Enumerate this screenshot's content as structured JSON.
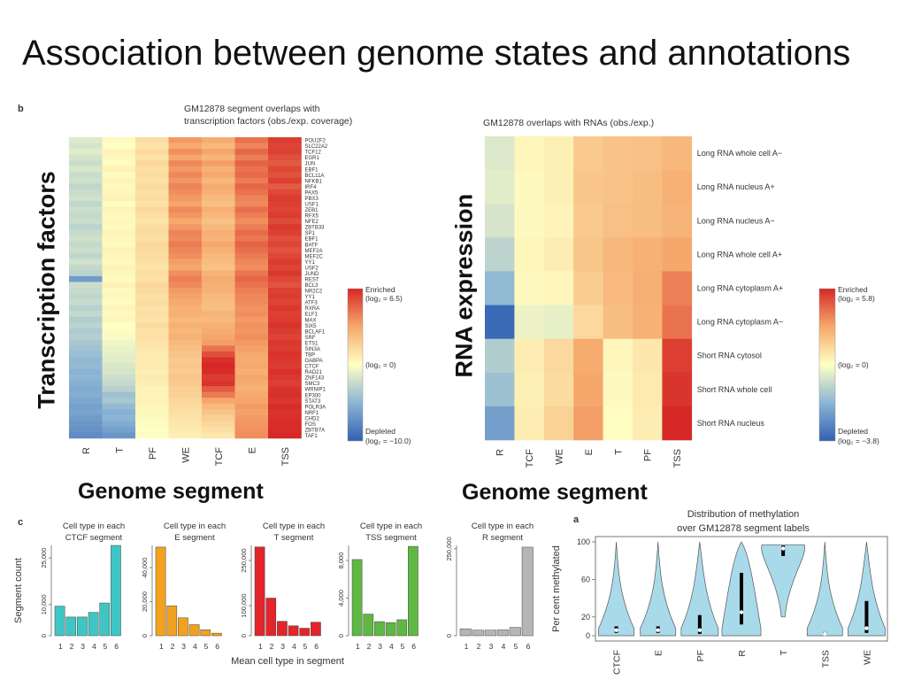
{
  "slide": {
    "title": "Association between genome states and annotations",
    "left_side_label": "Transcription factors",
    "right_side_label": "RNA expression",
    "segment_label_left": "Genome segment",
    "segment_label_right": "Genome segment"
  },
  "chart_data": [
    {
      "type": "heatmap",
      "panel": "b",
      "title": "GM12878 segment overlaps with transcription factors (obs./exp. coverage)",
      "title_lines": [
        "GM12878 segment overlaps with",
        "transcription factors (obs./exp. coverage)"
      ],
      "columns": [
        "R",
        "T",
        "PF",
        "WE",
        "TCF",
        "E",
        "TSS"
      ],
      "rows": [
        "POU2F2",
        "SLC22A2",
        "TCF12",
        "EGR1",
        "JUN",
        "EBF1",
        "BCL11A",
        "NFKB1",
        "IRF4",
        "PAX5",
        "PBX3",
        "USF1",
        "ZEB1",
        "RFX5",
        "NFE2",
        "ZBTB33",
        "SP1",
        "EBF1",
        "BATF",
        "MEF2A",
        "MEF2C",
        "YY1",
        "USF2",
        "JUND",
        "REST",
        "BCL3",
        "NR2C2",
        "YY1",
        "ATF3",
        "RXRA",
        "ELF1",
        "MAX",
        "SIX5",
        "BCLAF1",
        "SRF",
        "ETS1",
        "SIN3A",
        "TBP",
        "GABPA",
        "CTCF",
        "RAD21",
        "ZNF143",
        "SMC3",
        "WRNIP1",
        "EP300",
        "STAT3",
        "POLR3A",
        "NRF1",
        "CHD2",
        "FOS",
        "ZBTB7A",
        "TAF1"
      ],
      "scale": "log2",
      "values": [
        [
          -1.5,
          0.2,
          1.3,
          3.6,
          3.1,
          4.6,
          6.0
        ],
        [
          -1.8,
          0.0,
          1.0,
          3.1,
          2.6,
          4.1,
          5.8
        ],
        [
          -1.3,
          0.4,
          1.4,
          3.9,
          3.3,
          4.9,
          5.9
        ],
        [
          -1.9,
          0.3,
          1.1,
          3.3,
          2.8,
          4.3,
          5.5
        ],
        [
          -2.2,
          0.1,
          1.5,
          4.1,
          3.5,
          5.0,
          5.2
        ],
        [
          -1.7,
          0.5,
          1.2,
          3.6,
          2.9,
          4.6,
          5.7
        ],
        [
          -2.3,
          0.2,
          1.3,
          4.1,
          3.2,
          4.8,
          5.4
        ],
        [
          -2.1,
          0.4,
          1.1,
          3.7,
          2.7,
          4.4,
          5.9
        ],
        [
          -2.7,
          0.2,
          1.4,
          4.2,
          3.1,
          4.9,
          5.2
        ],
        [
          -2.4,
          0.3,
          1.2,
          3.9,
          2.9,
          4.6,
          5.7
        ],
        [
          -2.0,
          0.5,
          1.3,
          3.6,
          2.6,
          4.2,
          6.0
        ],
        [
          -2.8,
          0.1,
          1.1,
          3.3,
          2.4,
          4.0,
          5.9
        ],
        [
          -2.2,
          0.4,
          1.5,
          4.0,
          3.0,
          4.7,
          5.8
        ],
        [
          -2.6,
          0.2,
          1.2,
          3.7,
          2.7,
          4.3,
          6.0
        ],
        [
          -2.3,
          0.3,
          1.0,
          3.2,
          2.3,
          3.9,
          5.6
        ],
        [
          -2.9,
          0.2,
          1.3,
          3.6,
          2.6,
          4.3,
          6.1
        ],
        [
          -2.4,
          0.4,
          1.4,
          4.2,
          3.0,
          4.8,
          5.9
        ],
        [
          -2.1,
          0.3,
          1.2,
          4.0,
          2.8,
          4.5,
          5.5
        ],
        [
          -2.5,
          0.2,
          1.5,
          4.4,
          3.2,
          5.0,
          5.8
        ],
        [
          -2.2,
          0.5,
          1.4,
          4.1,
          3.0,
          4.7,
          5.4
        ],
        [
          -2.8,
          0.3,
          1.3,
          3.9,
          2.7,
          4.4,
          5.7
        ],
        [
          -2.0,
          0.2,
          1.2,
          3.5,
          2.5,
          4.1,
          6.0
        ],
        [
          -2.6,
          0.4,
          1.0,
          3.2,
          2.3,
          3.9,
          5.8
        ],
        [
          -3.0,
          0.3,
          1.3,
          3.9,
          2.8,
          4.5,
          6.1
        ],
        [
          -6.5,
          0.1,
          1.1,
          4.3,
          3.1,
          4.9,
          5.7
        ],
        [
          -2.2,
          0.5,
          1.5,
          4.0,
          3.0,
          4.6,
          5.4
        ],
        [
          -2.5,
          0.2,
          1.4,
          3.6,
          2.9,
          4.3,
          5.9
        ],
        [
          -2.8,
          0.3,
          1.2,
          3.4,
          2.7,
          4.1,
          6.0
        ],
        [
          -2.4,
          0.1,
          1.3,
          3.2,
          2.5,
          4.0,
          5.8
        ],
        [
          -3.1,
          0.4,
          1.1,
          2.9,
          2.4,
          3.8,
          6.1
        ],
        [
          -2.6,
          0.2,
          1.2,
          3.0,
          2.8,
          3.9,
          5.9
        ],
        [
          -3.4,
          0.3,
          1.0,
          2.6,
          2.6,
          3.6,
          6.0
        ],
        [
          -2.9,
          0.0,
          1.3,
          2.9,
          2.9,
          3.8,
          6.2
        ],
        [
          -3.6,
          0.1,
          1.1,
          2.7,
          3.1,
          3.7,
          6.0
        ],
        [
          -3.2,
          -0.3,
          1.2,
          2.9,
          3.3,
          3.9,
          5.8
        ],
        [
          -3.8,
          -0.6,
          1.0,
          2.6,
          3.5,
          3.6,
          6.1
        ],
        [
          -4.1,
          -0.9,
          0.9,
          2.4,
          4.6,
          3.4,
          6.0
        ],
        [
          -4.4,
          -1.1,
          0.8,
          2.2,
          5.5,
          3.2,
          6.2
        ],
        [
          -4.8,
          -1.3,
          0.7,
          2.0,
          6.3,
          3.1,
          6.1
        ],
        [
          -4.6,
          -1.6,
          0.8,
          2.1,
          6.5,
          3.2,
          6.0
        ],
        [
          -5.1,
          -1.8,
          0.6,
          1.9,
          6.4,
          3.0,
          6.3
        ],
        [
          -4.9,
          -2.2,
          0.8,
          2.2,
          6.0,
          3.3,
          6.1
        ],
        [
          -5.3,
          -2.6,
          0.6,
          2.0,
          6.2,
          3.1,
          5.9
        ],
        [
          -5.6,
          -3.1,
          0.5,
          1.8,
          5.2,
          3.0,
          6.2
        ],
        [
          -5.4,
          -4.2,
          0.4,
          1.7,
          4.4,
          3.2,
          6.3
        ],
        [
          -5.8,
          -3.8,
          0.5,
          1.5,
          3.3,
          3.3,
          6.1
        ],
        [
          -6.2,
          -4.6,
          0.3,
          1.3,
          2.6,
          3.6,
          6.4
        ],
        [
          -6.0,
          -5.2,
          0.3,
          1.2,
          2.2,
          3.4,
          6.2
        ],
        [
          -6.5,
          -4.9,
          0.2,
          1.1,
          1.8,
          3.6,
          6.3
        ],
        [
          -6.8,
          -5.6,
          0.1,
          0.9,
          1.5,
          3.7,
          6.4
        ],
        [
          -7.1,
          -6.2,
          0.0,
          0.8,
          1.2,
          3.8,
          6.4
        ],
        [
          -7.4,
          -6.8,
          -0.1,
          0.6,
          0.9,
          3.9,
          6.5
        ]
      ],
      "legend": {
        "top_lines": [
          "Enriched",
          "(log₂ = 6.5)"
        ],
        "mid": "(log₂ = 0)",
        "bottom_lines": [
          "Depleted",
          "(log₂ = −10.0)"
        ],
        "min": -10.0,
        "max": 6.5
      }
    },
    {
      "type": "heatmap",
      "title": "GM12878 overlaps with RNAs (obs./exp.)",
      "columns": [
        "R",
        "TCF",
        "WE",
        "E",
        "T",
        "PF",
        "TSS"
      ],
      "rows": [
        "Long RNA whole cell A−",
        "Long RNA nucleus A+",
        "Long RNA nucleus A−",
        "Long RNA whole cell A+",
        "Long RNA cytoplasm A+",
        "Long RNA cytoplasm A−",
        "Short RNA cytosol",
        "Short RNA whole cell",
        "Short RNA nucleus"
      ],
      "scale": "log2",
      "values": [
        [
          -0.6,
          0.3,
          0.5,
          1.8,
          2.0,
          2.1,
          2.4
        ],
        [
          -0.5,
          0.2,
          0.5,
          1.9,
          2.0,
          2.2,
          2.6
        ],
        [
          -0.7,
          0.2,
          0.4,
          1.8,
          2.1,
          2.2,
          2.5
        ],
        [
          -1.1,
          0.3,
          0.6,
          1.9,
          2.4,
          2.6,
          2.9
        ],
        [
          -1.8,
          0.2,
          0.3,
          1.7,
          2.3,
          2.7,
          3.8
        ],
        [
          -3.6,
          -0.3,
          -0.4,
          1.3,
          2.2,
          2.6,
          4.1
        ],
        [
          -1.3,
          0.6,
          1.3,
          2.8,
          0.3,
          0.8,
          5.3
        ],
        [
          -1.6,
          0.5,
          1.2,
          2.9,
          0.2,
          0.7,
          5.5
        ],
        [
          -2.4,
          0.6,
          1.5,
          3.1,
          0.1,
          0.6,
          5.8
        ]
      ],
      "legend": {
        "top_lines": [
          "Enriched",
          "(log₂ = 5.8)"
        ],
        "mid": "(log₂ = 0)",
        "bottom_lines": [
          "Depleted",
          "(log₂ = −3.8)"
        ],
        "min": -3.8,
        "max": 5.8
      }
    },
    {
      "type": "bar",
      "panel": "c",
      "title_lines": [
        "Cell type in each",
        "CTCF segment"
      ],
      "categories": [
        "1",
        "2",
        "3",
        "4",
        "5",
        "6"
      ],
      "values": [
        9500,
        6000,
        6000,
        7500,
        10500,
        29000
      ],
      "ylim": [
        0,
        29000
      ],
      "yticks": [
        0,
        10000,
        25000
      ],
      "color": "#3fc6c4",
      "ylabel": "Segment count"
    },
    {
      "type": "bar",
      "title_lines": [
        "Cell type in each",
        "E segment"
      ],
      "categories": [
        "1",
        "2",
        "3",
        "4",
        "5",
        "6"
      ],
      "values": [
        52000,
        17500,
        10500,
        6500,
        3500,
        1500
      ],
      "ylim": [
        0,
        53000
      ],
      "yticks": [
        0,
        20000,
        40000
      ],
      "color": "#f2a21e"
    },
    {
      "type": "bar",
      "title_lines": [
        "Cell type in each",
        "T segment"
      ],
      "categories": [
        "1",
        "2",
        "3",
        "4",
        "5",
        "6"
      ],
      "values": [
        295000,
        125000,
        48000,
        33000,
        25000,
        45000
      ],
      "ylim": [
        0,
        300000
      ],
      "yticks": [
        0,
        100000,
        250000
      ],
      "color": "#e3242b"
    },
    {
      "type": "bar",
      "title_lines": [
        "Cell type in each",
        "TSS segment"
      ],
      "categories": [
        "1",
        "2",
        "3",
        "4",
        "5",
        "6"
      ],
      "values": [
        8100,
        2300,
        1500,
        1400,
        1700,
        9500
      ],
      "ylim": [
        0,
        9600
      ],
      "yticks": [
        0,
        4000,
        8000
      ],
      "color": "#5fb843"
    },
    {
      "type": "bar",
      "title_lines": [
        "Cell type in each",
        "R segment"
      ],
      "categories": [
        "1",
        "2",
        "3",
        "4",
        "5",
        "6"
      ],
      "values": [
        20000,
        16000,
        16000,
        17000,
        24000,
        255000
      ],
      "ylim": [
        0,
        260000
      ],
      "yticks": [
        0,
        250000
      ],
      "color": "#b5b5b5"
    },
    {
      "type": "violin",
      "panel": "a",
      "title_lines": [
        "Distribution of methylation",
        "over GM12878 segment labels"
      ],
      "categories": [
        "CTCF",
        "E",
        "PF",
        "R",
        "T",
        "TSS",
        "WE"
      ],
      "ylabel": "Per cent methylated",
      "ylim": [
        0,
        100
      ],
      "yticks": [
        0,
        20,
        60,
        100
      ],
      "medians": [
        6,
        6,
        6,
        25,
        93,
        2,
        8
      ],
      "iqr": [
        [
          3,
          10
        ],
        [
          3,
          10
        ],
        [
          2,
          22
        ],
        [
          12,
          67
        ],
        [
          85,
          96
        ],
        [
          1,
          4
        ],
        [
          3,
          37
        ]
      ]
    }
  ],
  "axes_labels": {
    "bar_xlabel": "Mean cell type in segment"
  }
}
